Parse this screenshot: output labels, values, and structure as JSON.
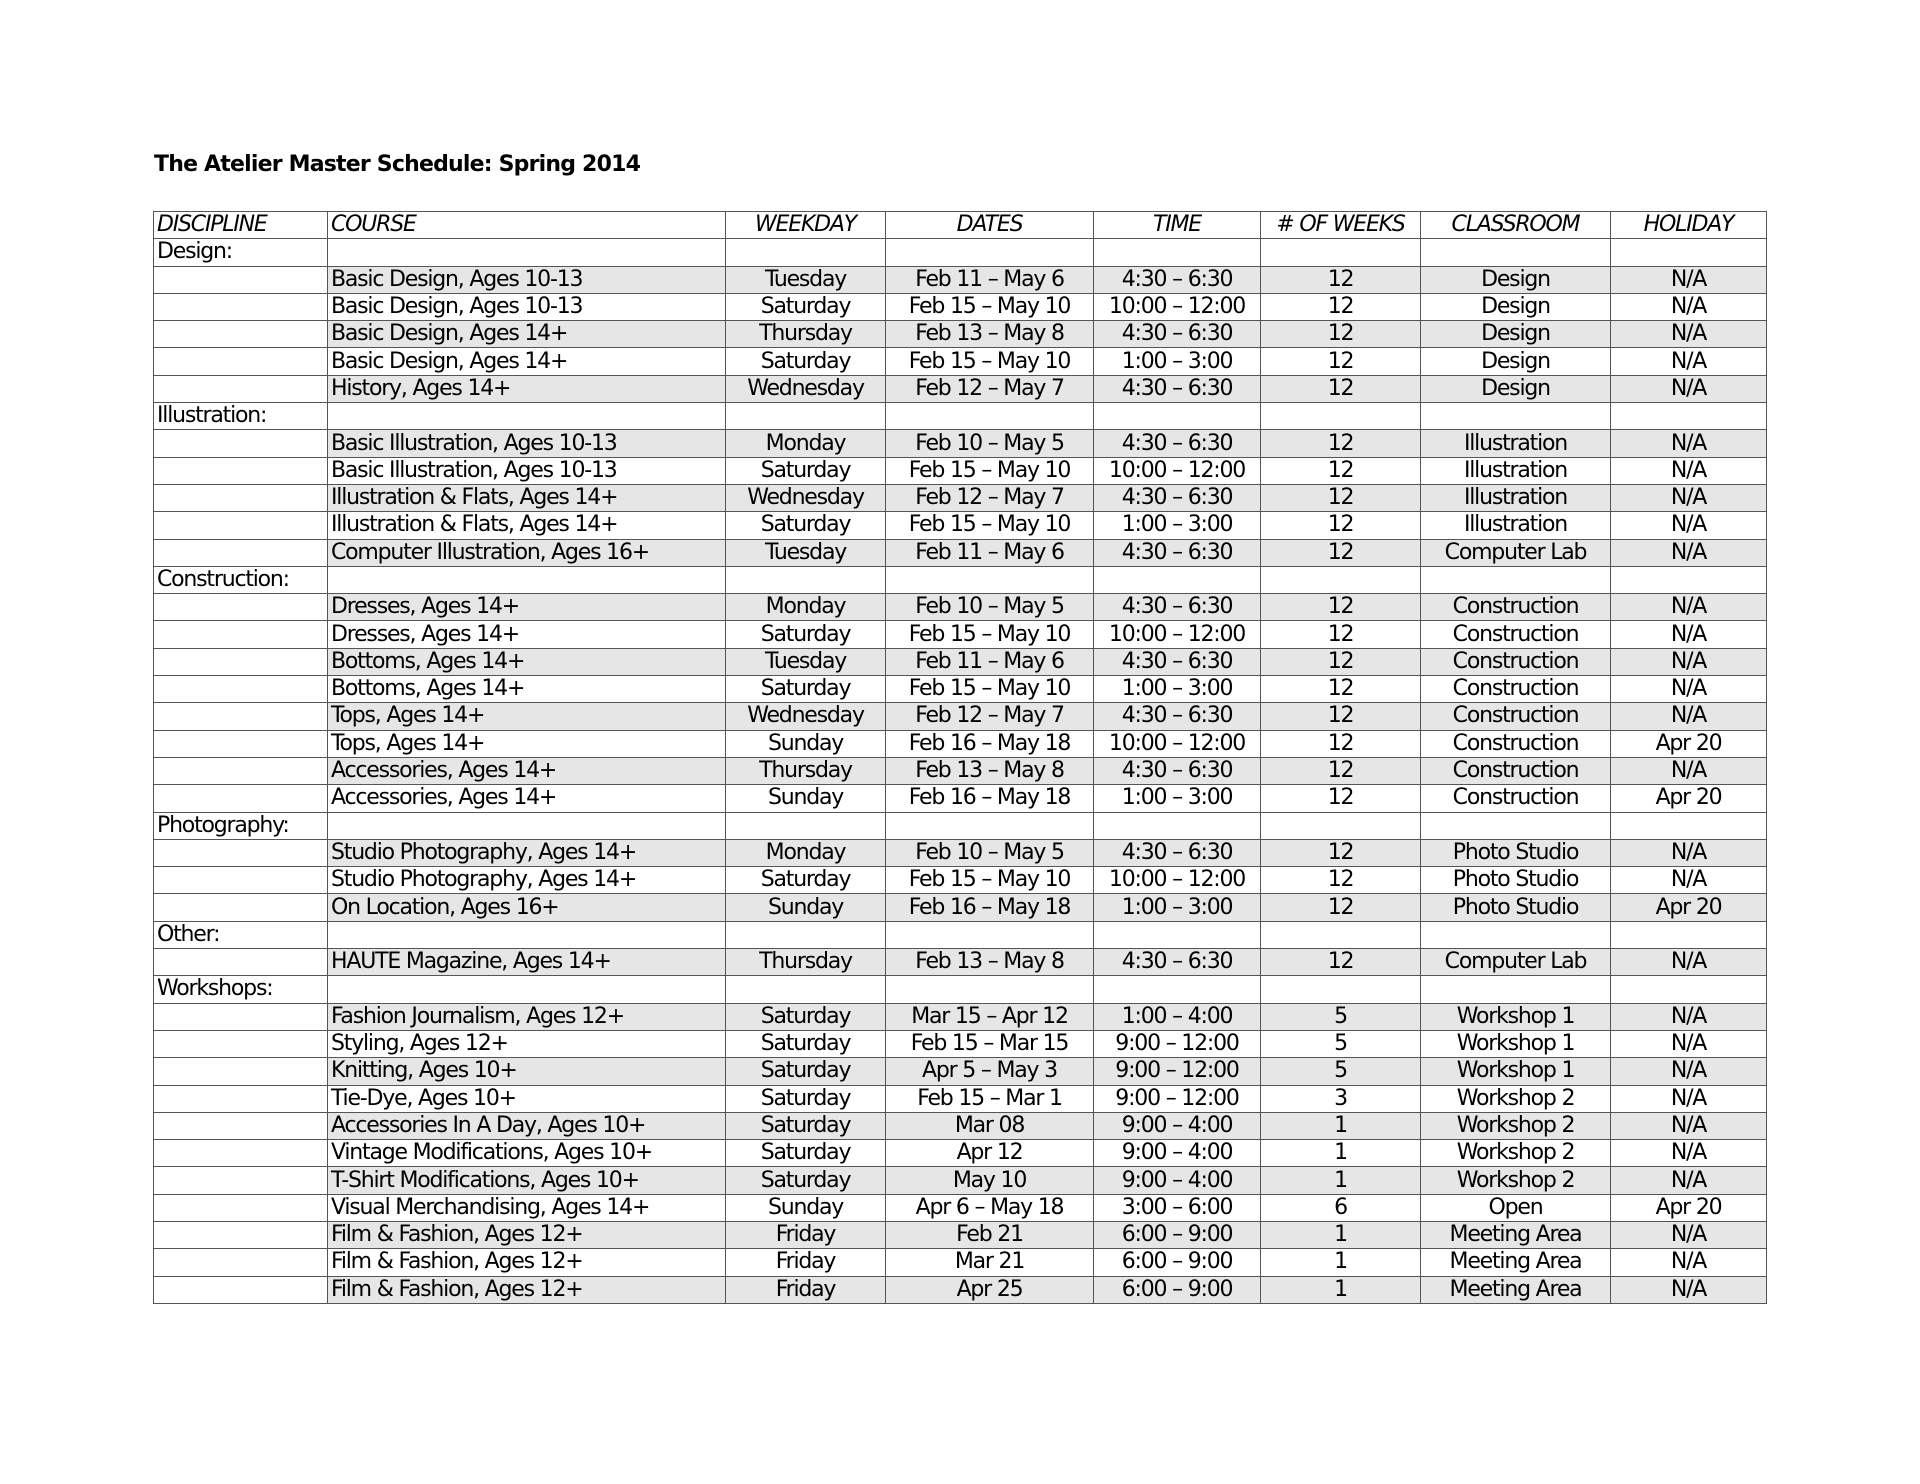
{
  "title": "The Atelier Master Schedule: Spring 2014",
  "shade_color": "#e6e6e6",
  "headers": [
    "DISCIPLINE",
    "COURSE",
    "WEEKDAY",
    "DATES",
    "TIME",
    "# OF WEEKS",
    "CLASSROOM",
    "HOLIDAY"
  ],
  "groups": [
    {
      "name": "Design:",
      "courses": [
        [
          "Basic Design, Ages 10-13",
          "Tuesday",
          "Feb 11 – May 6",
          "4:30 – 6:30",
          "12",
          "Design",
          "N/A"
        ],
        [
          "Basic Design, Ages 10-13",
          "Saturday",
          "Feb 15 – May 10",
          "10:00 – 12:00",
          "12",
          "Design",
          "N/A"
        ],
        [
          "Basic Design, Ages 14+",
          "Thursday",
          "Feb 13 – May 8",
          "4:30 – 6:30",
          "12",
          "Design",
          "N/A"
        ],
        [
          "Basic Design, Ages 14+",
          "Saturday",
          "Feb 15 – May 10",
          "1:00 – 3:00",
          "12",
          "Design",
          "N/A"
        ],
        [
          "History, Ages 14+",
          "Wednesday",
          "Feb 12 – May 7",
          "4:30 – 6:30",
          "12",
          "Design",
          "N/A"
        ]
      ]
    },
    {
      "name": "Illustration:",
      "courses": [
        [
          "Basic Illustration, Ages 10-13",
          "Monday",
          "Feb 10 – May 5",
          "4:30 – 6:30",
          "12",
          "Illustration",
          "N/A"
        ],
        [
          "Basic Illustration, Ages 10-13",
          "Saturday",
          "Feb 15 – May 10",
          "10:00 – 12:00",
          "12",
          "Illustration",
          "N/A"
        ],
        [
          "Illustration & Flats, Ages 14+",
          "Wednesday",
          "Feb 12 – May 7",
          "4:30 – 6:30",
          "12",
          "Illustration",
          "N/A"
        ],
        [
          "Illustration & Flats, Ages 14+",
          "Saturday",
          "Feb 15 – May 10",
          "1:00 – 3:00",
          "12",
          "Illustration",
          "N/A"
        ],
        [
          "Computer Illustration, Ages 16+",
          "Tuesday",
          "Feb 11 – May 6",
          "4:30 – 6:30",
          "12",
          "Computer Lab",
          "N/A"
        ]
      ]
    },
    {
      "name": "Construction:",
      "courses": [
        [
          "Dresses, Ages 14+",
          "Monday",
          "Feb 10 – May 5",
          "4:30 – 6:30",
          "12",
          "Construction",
          "N/A"
        ],
        [
          "Dresses, Ages 14+",
          "Saturday",
          "Feb 15 – May 10",
          "10:00 – 12:00",
          "12",
          "Construction",
          "N/A"
        ],
        [
          "Bottoms, Ages 14+",
          "Tuesday",
          "Feb 11 – May 6",
          "4:30 – 6:30",
          "12",
          "Construction",
          "N/A"
        ],
        [
          "Bottoms, Ages 14+",
          "Saturday",
          "Feb 15 – May 10",
          "1:00 – 3:00",
          "12",
          "Construction",
          "N/A"
        ],
        [
          "Tops, Ages 14+",
          "Wednesday",
          "Feb 12 – May 7",
          "4:30 – 6:30",
          "12",
          "Construction",
          "N/A"
        ],
        [
          "Tops, Ages 14+",
          "Sunday",
          "Feb 16 – May 18",
          "10:00 – 12:00",
          "12",
          "Construction",
          "Apr 20"
        ],
        [
          "Accessories, Ages 14+",
          "Thursday",
          "Feb 13 – May 8",
          "4:30 – 6:30",
          "12",
          "Construction",
          "N/A"
        ],
        [
          "Accessories, Ages 14+",
          "Sunday",
          "Feb 16 – May 18",
          "1:00 – 3:00",
          "12",
          "Construction",
          "Apr 20"
        ]
      ]
    },
    {
      "name": "Photography:",
      "courses": [
        [
          "Studio Photography, Ages 14+",
          "Monday",
          "Feb 10 – May 5",
          "4:30 – 6:30",
          "12",
          "Photo Studio",
          "N/A"
        ],
        [
          "Studio Photography, Ages 14+",
          "Saturday",
          "Feb 15 – May 10",
          "10:00 – 12:00",
          "12",
          "Photo Studio",
          "N/A"
        ],
        [
          "On Location, Ages 16+",
          "Sunday",
          "Feb 16 – May 18",
          "1:00 – 3:00",
          "12",
          "Photo Studio",
          "Apr 20"
        ]
      ]
    },
    {
      "name": "Other:",
      "courses": [
        [
          "HAUTE Magazine, Ages 14+",
          "Thursday",
          "Feb 13 – May 8",
          "4:30 – 6:30",
          "12",
          "Computer Lab",
          "N/A"
        ]
      ]
    },
    {
      "name": "Workshops:",
      "courses": [
        [
          "Fashion Journalism, Ages 12+",
          "Saturday",
          "Mar 15 – Apr 12",
          "1:00 – 4:00",
          "5",
          "Workshop 1",
          "N/A"
        ],
        [
          "Styling, Ages 12+",
          "Saturday",
          "Feb 15 – Mar 15",
          "9:00 – 12:00",
          "5",
          "Workshop 1",
          "N/A"
        ],
        [
          "Knitting, Ages 10+",
          "Saturday",
          "Apr 5 – May 3",
          "9:00 – 12:00",
          "5",
          "Workshop 1",
          "N/A"
        ],
        [
          "Tie-Dye, Ages 10+",
          "Saturday",
          "Feb 15 – Mar 1",
          "9:00 – 12:00",
          "3",
          "Workshop 2",
          "N/A"
        ],
        [
          "Accessories In A Day, Ages 10+",
          "Saturday",
          "Mar 08",
          "9:00 – 4:00",
          "1",
          "Workshop 2",
          "N/A"
        ],
        [
          "Vintage Modifications, Ages 10+",
          "Saturday",
          "Apr 12",
          "9:00 – 4:00",
          "1",
          "Workshop 2",
          "N/A"
        ],
        [
          "T-Shirt Modifications, Ages 10+",
          "Saturday",
          "May 10",
          "9:00 – 4:00",
          "1",
          "Workshop 2",
          "N/A"
        ],
        [
          "Visual Merchandising, Ages 14+",
          "Sunday",
          "Apr 6 – May 18",
          "3:00 – 6:00",
          "6",
          "Open",
          "Apr 20"
        ],
        [
          "Film & Fashion, Ages 12+",
          "Friday",
          "Feb 21",
          "6:00 – 9:00",
          "1",
          "Meeting Area",
          "N/A"
        ],
        [
          "Film & Fashion, Ages 12+",
          "Friday",
          "Mar 21",
          "6:00 – 9:00",
          "1",
          "Meeting Area",
          "N/A"
        ],
        [
          "Film & Fashion, Ages 12+",
          "Friday",
          "Apr 25",
          "6:00 – 9:00",
          "1",
          "Meeting Area",
          "N/A"
        ]
      ]
    }
  ]
}
